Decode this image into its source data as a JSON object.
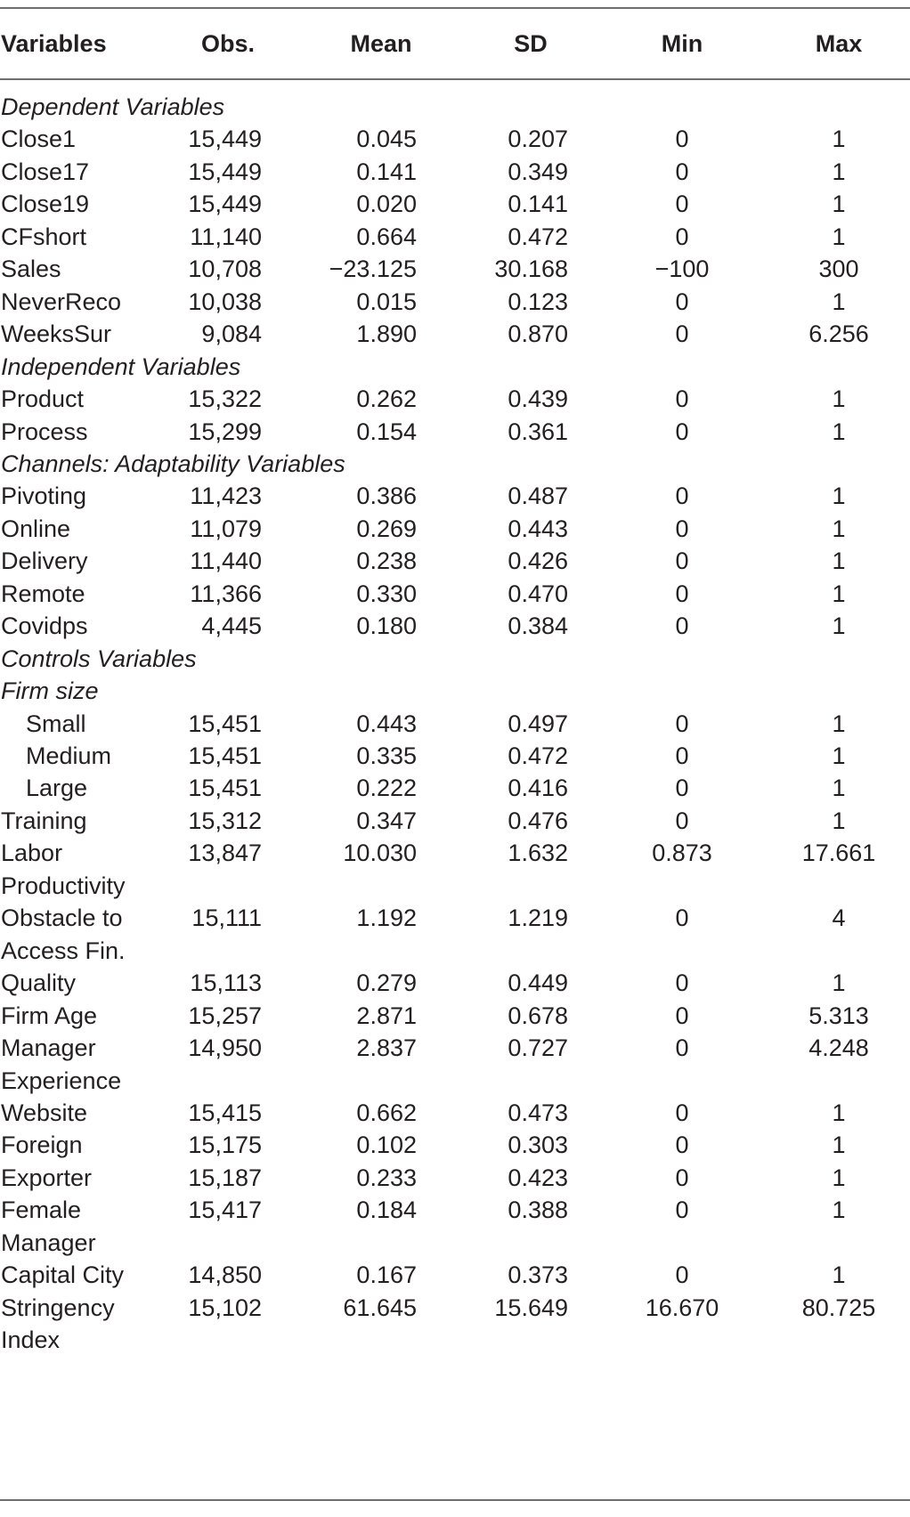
{
  "header": {
    "variables": "Variables",
    "obs": "Obs.",
    "mean": "Mean",
    "sd": "SD",
    "min": "Min",
    "max": "Max"
  },
  "rows": [
    {
      "kind": "section",
      "label": "Dependent Variables"
    },
    {
      "kind": "data",
      "var": "Close1",
      "obs": "15,449",
      "mean": "0.045",
      "sd": "0.207",
      "min": "0",
      "max": "1"
    },
    {
      "kind": "data",
      "var": "Close17",
      "obs": "15,449",
      "mean": "0.141",
      "sd": "0.349",
      "min": "0",
      "max": "1"
    },
    {
      "kind": "data",
      "var": "Close19",
      "obs": "15,449",
      "mean": "0.020",
      "sd": "0.141",
      "min": "0",
      "max": "1"
    },
    {
      "kind": "data",
      "var": "CFshort",
      "obs": "11,140",
      "mean": "0.664",
      "sd": "0.472",
      "min": "0",
      "max": "1"
    },
    {
      "kind": "data",
      "var": "Sales",
      "obs": "10,708",
      "mean": "−23.125",
      "sd": "30.168",
      "min": "−100",
      "max": "300"
    },
    {
      "kind": "data",
      "var": "NeverReco",
      "obs": "10,038",
      "mean": "0.015",
      "sd": "0.123",
      "min": "0",
      "max": "1"
    },
    {
      "kind": "data",
      "var": "WeeksSur",
      "obs": "9,084",
      "mean": "1.890",
      "sd": "0.870",
      "min": "0",
      "max": "6.256"
    },
    {
      "kind": "section",
      "label": "Independent Variables"
    },
    {
      "kind": "data",
      "var": "Product",
      "obs": "15,322",
      "mean": "0.262",
      "sd": "0.439",
      "min": "0",
      "max": "1"
    },
    {
      "kind": "data",
      "var": "Process",
      "obs": "15,299",
      "mean": "0.154",
      "sd": "0.361",
      "min": "0",
      "max": "1"
    },
    {
      "kind": "section",
      "label": "Channels: Adaptability Variables"
    },
    {
      "kind": "data",
      "var": "Pivoting",
      "obs": "11,423",
      "mean": "0.386",
      "sd": "0.487",
      "min": "0",
      "max": "1"
    },
    {
      "kind": "data",
      "var": "Online",
      "obs": "11,079",
      "mean": "0.269",
      "sd": "0.443",
      "min": "0",
      "max": "1"
    },
    {
      "kind": "data",
      "var": "Delivery",
      "obs": "11,440",
      "mean": "0.238",
      "sd": "0.426",
      "min": "0",
      "max": "1"
    },
    {
      "kind": "data",
      "var": "Remote",
      "obs": "11,366",
      "mean": "0.330",
      "sd": "0.470",
      "min": "0",
      "max": "1"
    },
    {
      "kind": "data",
      "var": "Covidps",
      "obs": "4,445",
      "mean": "0.180",
      "sd": "0.384",
      "min": "0",
      "max": "1"
    },
    {
      "kind": "section",
      "label": "Controls Variables"
    },
    {
      "kind": "section",
      "label": "Firm size"
    },
    {
      "kind": "data",
      "var": "Small",
      "indent": true,
      "obs": "15,451",
      "mean": "0.443",
      "sd": "0.497",
      "min": "0",
      "max": "1"
    },
    {
      "kind": "data",
      "var": "Medium",
      "indent": true,
      "obs": "15,451",
      "mean": "0.335",
      "sd": "0.472",
      "min": "0",
      "max": "1"
    },
    {
      "kind": "data",
      "var": "Large",
      "indent": true,
      "obs": "15,451",
      "mean": "0.222",
      "sd": "0.416",
      "min": "0",
      "max": "1"
    },
    {
      "kind": "data",
      "var": "Training",
      "obs": "15,312",
      "mean": "0.347",
      "sd": "0.476",
      "min": "0",
      "max": "1"
    },
    {
      "kind": "data",
      "var": "Labor",
      "obs": "13,847",
      "mean": "10.030",
      "sd": "1.632",
      "min": "0.873",
      "max": "17.661"
    },
    {
      "kind": "cont",
      "var": "Productivity"
    },
    {
      "kind": "data",
      "var": "Obstacle to",
      "obs": "15,111",
      "mean": "1.192",
      "sd": "1.219",
      "min": "0",
      "max": "4"
    },
    {
      "kind": "cont",
      "var": "Access Fin."
    },
    {
      "kind": "data",
      "var": "Quality",
      "obs": "15,113",
      "mean": "0.279",
      "sd": "0.449",
      "min": "0",
      "max": "1"
    },
    {
      "kind": "data",
      "var": "Firm Age",
      "obs": "15,257",
      "mean": "2.871",
      "sd": "0.678",
      "min": "0",
      "max": "5.313"
    },
    {
      "kind": "data",
      "var": "Manager",
      "obs": "14,950",
      "mean": "2.837",
      "sd": "0.727",
      "min": "0",
      "max": "4.248"
    },
    {
      "kind": "cont",
      "var": "Experience"
    },
    {
      "kind": "data",
      "var": "Website",
      "obs": "15,415",
      "mean": "0.662",
      "sd": "0.473",
      "min": "0",
      "max": "1"
    },
    {
      "kind": "data",
      "var": "Foreign",
      "obs": "15,175",
      "mean": "0.102",
      "sd": "0.303",
      "min": "0",
      "max": "1"
    },
    {
      "kind": "data",
      "var": "Exporter",
      "obs": "15,187",
      "mean": "0.233",
      "sd": "0.423",
      "min": "0",
      "max": "1"
    },
    {
      "kind": "data",
      "var": "Female",
      "obs": "15,417",
      "mean": "0.184",
      "sd": "0.388",
      "min": "0",
      "max": "1"
    },
    {
      "kind": "cont",
      "var": "Manager"
    },
    {
      "kind": "data",
      "var": "Capital City",
      "obs": "14,850",
      "mean": "0.167",
      "sd": "0.373",
      "min": "0",
      "max": "1"
    },
    {
      "kind": "data",
      "var": "Stringency",
      "obs": "15,102",
      "mean": "61.645",
      "sd": "15.649",
      "min": "16.670",
      "max": "80.725"
    },
    {
      "kind": "cont",
      "var": "Index"
    }
  ]
}
